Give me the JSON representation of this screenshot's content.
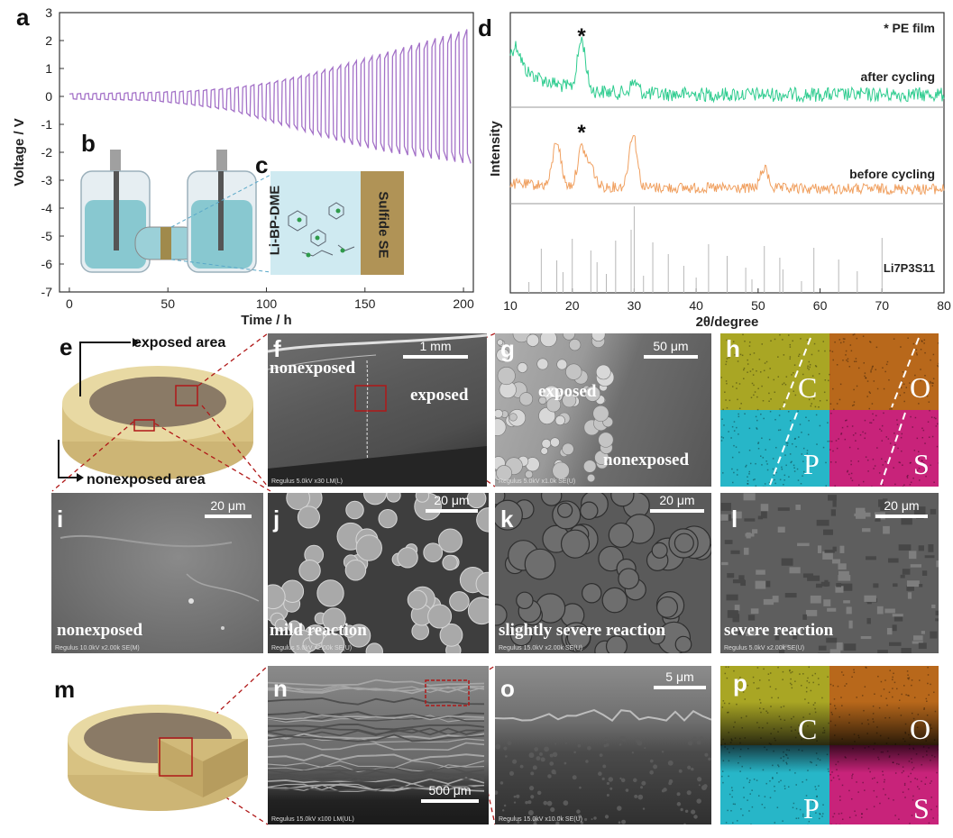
{
  "panels": {
    "a": "a",
    "b": "b",
    "c": "c",
    "d": "d",
    "e": "e",
    "f": "f",
    "g": "g",
    "h": "h",
    "i": "i",
    "j": "j",
    "k": "k",
    "l": "l",
    "m": "m",
    "n": "n",
    "o": "o",
    "p": "p"
  },
  "chart_data": [
    {
      "type": "line",
      "panel": "a",
      "title": "",
      "xlabel": "Time / h",
      "ylabel": "Voltage / V",
      "xlim": [
        -5,
        205
      ],
      "ylim": [
        -7,
        3
      ],
      "xticks": [
        "0",
        "50",
        "100",
        "150",
        "200"
      ],
      "yticks": [
        "3",
        "2",
        "1",
        "0",
        "-1",
        "-2",
        "-3",
        "-4",
        "-5",
        "-6",
        "-7"
      ],
      "series": [
        {
          "color": "#a472c8",
          "description_points_x": [
            0,
            20,
            40,
            60,
            80,
            100,
            120,
            140,
            160,
            180,
            200
          ],
          "upper_envelope_y": [
            0.1,
            0.12,
            0.15,
            0.2,
            0.3,
            0.5,
            0.8,
            1.2,
            1.6,
            2.0,
            2.4
          ],
          "lower_envelope_y": [
            -0.1,
            -0.12,
            -0.15,
            -0.3,
            -0.5,
            -0.9,
            -1.3,
            -1.7,
            -2.0,
            -2.2,
            -2.4
          ],
          "cycle_period_h": 4
        }
      ],
      "grid": false
    },
    {
      "type": "line",
      "panel": "d",
      "title": "",
      "xlabel": "2θ/degree",
      "ylabel": "Intensity",
      "xlim": [
        10,
        80
      ],
      "xticks": [
        "10",
        "20",
        "30",
        "40",
        "50",
        "60",
        "70",
        "80"
      ],
      "series": [
        {
          "name": "after cycling",
          "color": "#2ecc8f",
          "peaks_x": [
            11,
            21.5,
            30
          ]
        },
        {
          "name": "before cycling",
          "color": "#f0a060",
          "peaks_x": [
            17.5,
            21.5,
            23,
            29.8,
            51
          ]
        },
        {
          "name": "Li7P3S11",
          "color": "#b8b8b8",
          "peaks_x": [
            13,
            15,
            17.5,
            18.5,
            20,
            23,
            24,
            25.5,
            27,
            29.5,
            30,
            31.5,
            33,
            35.5,
            38,
            40,
            42,
            45,
            48,
            49,
            51,
            53.5,
            54,
            57,
            59,
            63,
            66,
            70
          ]
        }
      ],
      "legend": "* PE film",
      "star_positions_x": [
        21.5,
        21.5
      ],
      "grid": false
    }
  ],
  "b": {
    "electrolyte_label": "Li-BP-DME",
    "se_label": "Sulfide SE"
  },
  "e": {
    "exposed": "exposed area",
    "nonexposed": "nonexposed area"
  },
  "f": {
    "scale": "1 mm",
    "nonexposed": "nonexposed",
    "exposed": "exposed",
    "footer": "Regulus 5.0kV x30 LM(L)"
  },
  "g": {
    "scale": "50 μm",
    "exposed": "exposed",
    "nonexposed": "nonexposed",
    "footer": "Regulus 5.0kV x1.0k SE(U)"
  },
  "h": {
    "C": "C",
    "O": "O",
    "P": "P",
    "S": "S"
  },
  "i": {
    "scale": "20 μm",
    "caption": "nonexposed",
    "footer": "Regulus 10.0kV x2.00k SE(M)"
  },
  "j": {
    "scale": "20 μm",
    "caption": "mild reaction",
    "footer": "Regulus 5.0kV x2.00k SE(U)"
  },
  "k": {
    "scale": "20 μm",
    "caption": "slightly severe reaction",
    "footer": "Regulus 15.0kV x2.00k SE(U)"
  },
  "l": {
    "scale": "20 μm",
    "caption": "severe reaction",
    "footer": "Regulus 5.0kV x2.00k SE(U)"
  },
  "n": {
    "scale": "500 μm",
    "footer": "Regulus 15.0kV x100 LM(UL)"
  },
  "o": {
    "scale": "5 μm",
    "footer": "Regulus 15.0kV x10.0k SE(U)"
  },
  "p": {
    "C": "C",
    "O": "O",
    "P": "P",
    "S": "S"
  },
  "colors": {
    "voltage_trace": "#a472c8",
    "after_cycling": "#2ecc8f",
    "before_cycling": "#f0a060",
    "reference": "#b8b8b8",
    "dashed_guide": "#b01818",
    "edx_C": "#a9a624",
    "edx_O": "#b8681b",
    "edx_P": "#27b6c8",
    "edx_S": "#c8237a"
  }
}
